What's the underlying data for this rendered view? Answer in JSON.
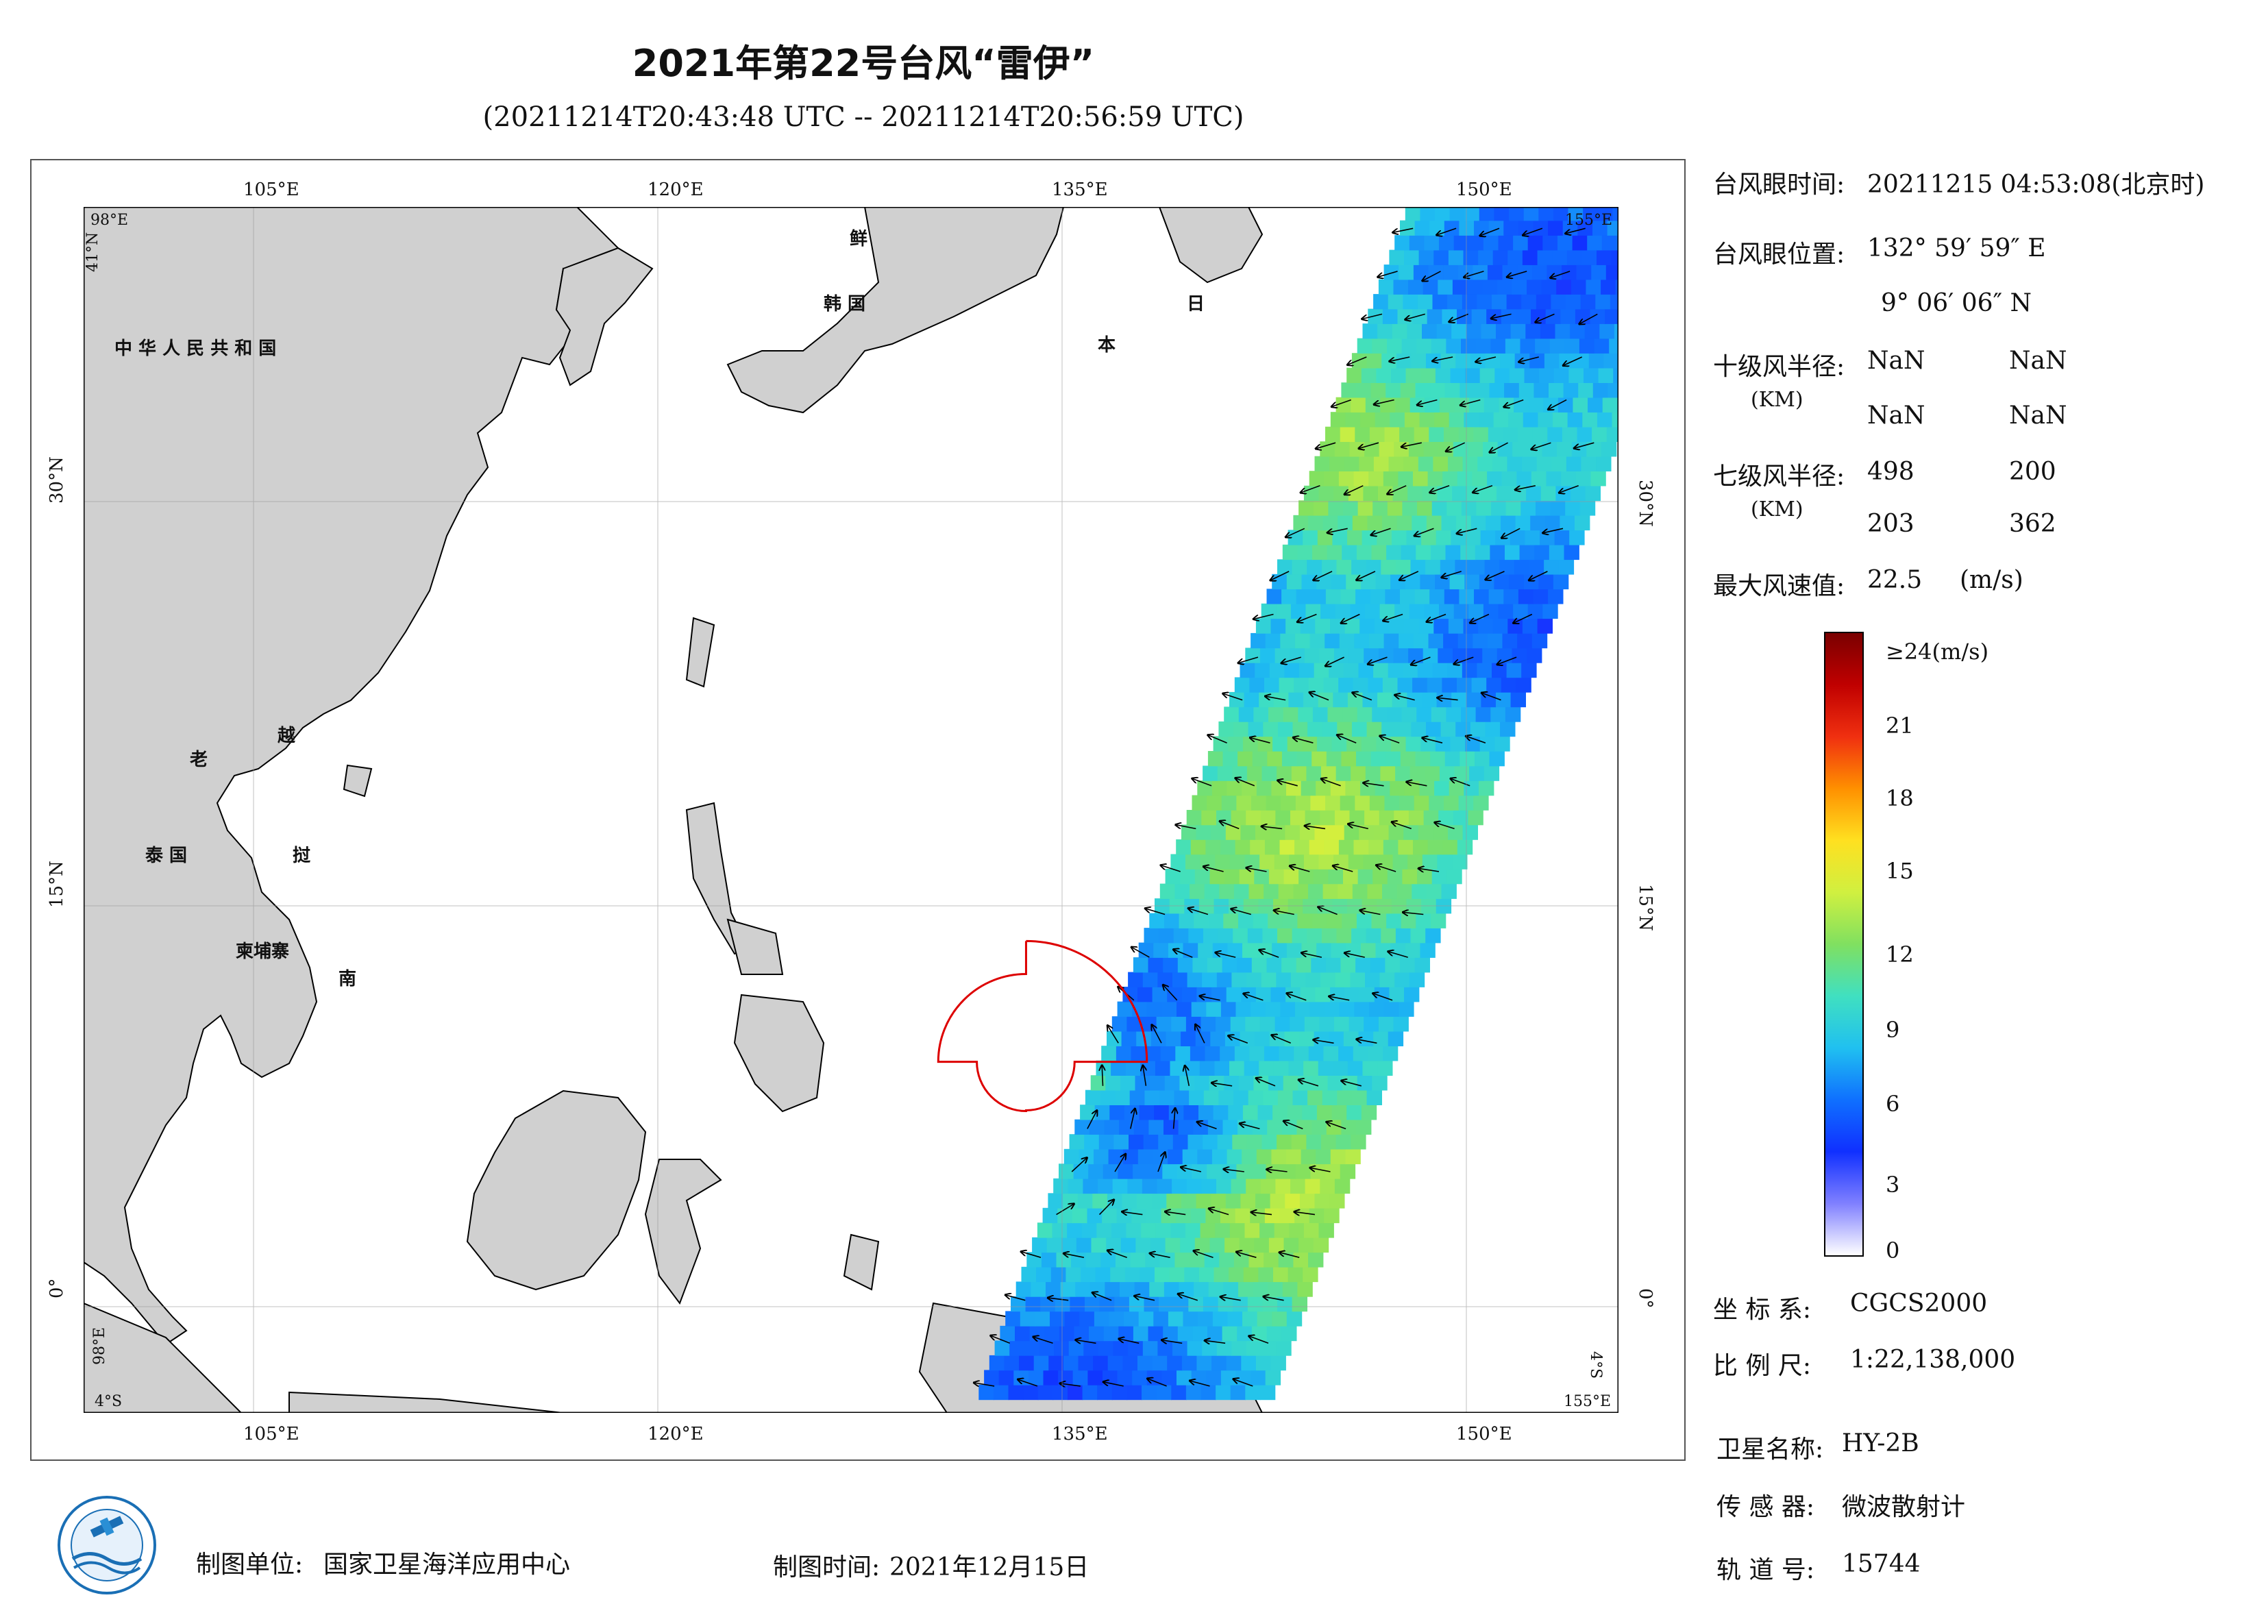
{
  "header": {
    "title": "2021年第22号台风“雷伊”",
    "subtitle": "(20211214T20:43:48 UTC -- 20211214T20:56:59 UTC)"
  },
  "map": {
    "lon_range": [
      98,
      155
    ],
    "lat_range": [
      -4,
      41
    ],
    "lon_ticks": [
      "105°E",
      "120°E",
      "135°E",
      "150°E"
    ],
    "lat_ticks_left": [
      "30°N",
      "15°N",
      "0°"
    ],
    "lat_ticks_right": [
      "30°N",
      "15°N",
      "0°"
    ],
    "corner_labels": {
      "top_left_lon": "98°E",
      "top_left_lat": "41°N",
      "top_right_lon": "155°E",
      "bottom_left_lat": "4°S",
      "bottom_left_lon": "98°E",
      "bottom_right_lat": "4°S",
      "bottom_right_lon": "155°E"
    },
    "place_labels": [
      "中 华 人 民 共 和 国",
      "鲜",
      "韩 国",
      "日",
      "本",
      "老",
      "越",
      "泰 国",
      "挝",
      "柬埔寨",
      "南"
    ],
    "land_color": "#d0d0d0",
    "sea_color": "#ffffff",
    "typhoon_eye": {
      "lon": 133.0,
      "lat": 9.1
    },
    "wind_radius_color": "#dd0000"
  },
  "info": {
    "eye_time_label": "台风眼时间:",
    "eye_time_value": "20211215 04:53:08(北京时)",
    "eye_pos_label": "台风眼位置:",
    "eye_lon": "132° 59′ 59″ E",
    "eye_lat": "9° 06′ 06″ N",
    "r10_label": "十级风半径:",
    "r10_unit": "(KM)",
    "r10_values": [
      "NaN",
      "NaN",
      "NaN",
      "NaN"
    ],
    "r7_label": "七级风半径:",
    "r7_unit": "(KM)",
    "r7_values": [
      "498",
      "200",
      "203",
      "362"
    ],
    "max_wind_label": "最大风速值:",
    "max_wind_value": "22.5",
    "max_wind_unit": "(m/s)"
  },
  "colorbar": {
    "top_label": "≥24(m/s)",
    "labels": [
      "21",
      "18",
      "15",
      "12",
      "9",
      "6",
      "3",
      "0"
    ],
    "unit": "(m/s)",
    "range": [
      0,
      24
    ],
    "stops": [
      "#ffffff",
      "#8080ff",
      "#1030ff",
      "#0f70ff",
      "#20c0f0",
      "#40e0c0",
      "#80e060",
      "#d0f040",
      "#ffe020",
      "#ff9000",
      "#f03010",
      "#c00000",
      "#7a0000"
    ]
  },
  "footer": {
    "coord_label": "坐 标 系:",
    "coord_value": "CGCS2000",
    "scale_label": "比 例 尺:",
    "scale_value": "1:22,138,000",
    "sat_label": "卫星名称:",
    "sat_value": "HY-2B",
    "sensor_label": "传 感 器:",
    "sensor_value": "微波散射计",
    "orbit_label": "轨 道 号:",
    "orbit_value": "15744",
    "maker_label": "制图单位:",
    "maker_value": "国家卫星海洋应用中心",
    "date_label": "制图时间:",
    "date_value": "2021年12月15日"
  }
}
